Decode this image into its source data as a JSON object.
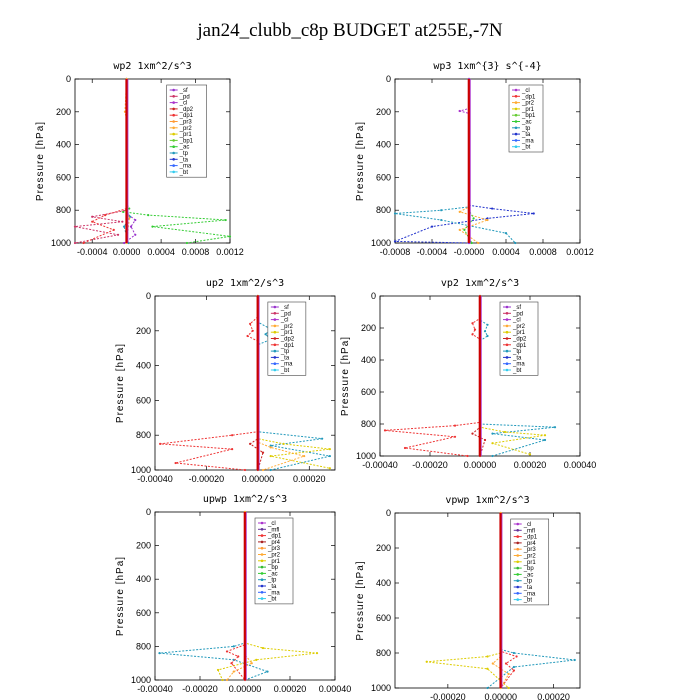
{
  "title": "jan24_clubb_c8p  BUDGET at255E,-7N",
  "colors": {
    "bg": "#ffffff",
    "axis": "#000000",
    "legend_border": "#444444",
    "bt_line": "#cc0000",
    "sf": "#9933cc",
    "pd": "#cc3366",
    "cl": "#aa33cc",
    "dp2": "#cc2222",
    "dp1": "#ee3333",
    "pr3": "#ff9933",
    "pr2": "#ffaa33",
    "pr1": "#ddcc00",
    "bp1": "#66cc33",
    "ac": "#33cc33",
    "tp": "#2299bb",
    "ta": "#2233cc",
    "ma": "#3366ff",
    "bt": "#33ccee",
    "mfl": "#663399",
    "pr4": "#aa2222",
    "bp": "#33bb33"
  },
  "chart_data": [
    {
      "type": "line",
      "title": "wp2   1xm^2/s^3",
      "ylabel": "Pressure [hPa]",
      "ylim": [
        0,
        1000
      ],
      "xlim": [
        -0.0006,
        0.0012
      ],
      "yticks": [
        0,
        200,
        400,
        600,
        800,
        1000
      ],
      "yticklabels": [
        "0",
        "200",
        "400",
        "600",
        "800",
        "1000"
      ],
      "xticks": [
        -0.0004,
        0,
        0.0004,
        0.0008,
        0.0012
      ],
      "xticklabels": [
        "-0.0004",
        "0.0000",
        "0.0004",
        "0.0008",
        "0.0012"
      ],
      "legend": [
        "_sf",
        "_pd",
        "_cl",
        "_dp2",
        "_dp1",
        "_pr3",
        "_pr2",
        "_pr1",
        "_bp1",
        "_ac",
        "_tp",
        "_ta",
        "_ma",
        "_bt"
      ],
      "legend_keys": [
        "sf",
        "pd",
        "cl",
        "dp2",
        "dp1",
        "pr3",
        "pr2",
        "pr1",
        "bp1",
        "ac",
        "tp",
        "ta",
        "ma",
        "bt"
      ],
      "series": [
        {
          "key": "ac",
          "x": [
            0,
            0,
            3e-05,
            -4e-05,
            0.00025,
            0.00115,
            0.0003,
            0.0012,
            0.0007
          ],
          "y": [
            0,
            760,
            790,
            810,
            830,
            860,
            900,
            960,
            1000
          ]
        },
        {
          "key": "pd",
          "x": [
            0,
            0,
            -0.0004,
            -5e-05,
            -0.0006,
            -0.0001,
            -0.0006
          ],
          "y": [
            0,
            800,
            840,
            870,
            900,
            950,
            1000
          ]
        },
        {
          "key": "dp1",
          "x": [
            0,
            0,
            -0.00025,
            -0.0004,
            -0.00015,
            -0.0005
          ],
          "y": [
            0,
            790,
            830,
            870,
            920,
            1000
          ]
        },
        {
          "key": "sf",
          "x": [
            0,
            0,
            0.0001,
            5e-05,
            0.0001,
            -3e-05
          ],
          "y": [
            0,
            820,
            860,
            900,
            950,
            1000
          ]
        },
        {
          "key": "tp",
          "x": [
            0,
            0,
            4e-05,
            -3e-05,
            2e-05
          ],
          "y": [
            0,
            800,
            840,
            900,
            1000
          ]
        },
        {
          "key": "pr2",
          "x": [
            0,
            -2e-05,
            0,
            0,
            3e-05,
            0
          ],
          "y": [
            0,
            200,
            250,
            800,
            850,
            1000
          ]
        }
      ]
    },
    {
      "type": "line",
      "title": "wp3   1xm^{3} s^{-4}",
      "ylabel": "Pressure [hPa]",
      "ylim": [
        0,
        1000
      ],
      "xlim": [
        -0.0008,
        0.0012
      ],
      "yticks": [
        0,
        200,
        400,
        600,
        800,
        1000
      ],
      "yticklabels": [
        "0",
        "200",
        "400",
        "600",
        "800",
        "1000"
      ],
      "xticks": [
        -0.0008,
        -0.0004,
        0,
        0.0004,
        0.0008,
        0.0012
      ],
      "xticklabels": [
        "-0.0008",
        "-0.0004",
        "-0.0000",
        "0.0004",
        "0.0008",
        "0.0012"
      ],
      "legend": [
        "_cl",
        "_dp1",
        "_pr2",
        "_pr1",
        "_bp1",
        "_ac",
        "_tp",
        "_ta",
        "_ma",
        "_bt"
      ],
      "legend_keys": [
        "cl",
        "dp1",
        "pr2",
        "pr1",
        "bp1",
        "ac",
        "tp",
        "ta",
        "ma",
        "bt"
      ],
      "series": [
        {
          "key": "ta",
          "x": [
            0,
            0,
            0.00025,
            0.0007,
            0.0002,
            -0.0004,
            -0.0008,
            0
          ],
          "y": [
            0,
            770,
            790,
            820,
            850,
            900,
            990,
            1000
          ]
        },
        {
          "key": "tp",
          "x": [
            0,
            0,
            -0.0003,
            -0.0008,
            -0.0003,
            0.0004,
            0.0005
          ],
          "y": [
            0,
            780,
            800,
            820,
            860,
            940,
            1000
          ]
        },
        {
          "key": "pr2",
          "x": [
            0,
            0,
            -0.0001,
            0.0002,
            -0.0001,
            0.0001
          ],
          "y": [
            0,
            780,
            810,
            860,
            920,
            1000
          ]
        },
        {
          "key": "ac",
          "x": [
            0,
            0,
            5e-05,
            -5e-05,
            3e-05
          ],
          "y": [
            0,
            800,
            850,
            920,
            1000
          ]
        },
        {
          "key": "cl",
          "x": [
            0,
            0,
            -0.0001,
            0,
            0
          ],
          "y": [
            0,
            180,
            195,
            210,
            1000
          ]
        }
      ]
    },
    {
      "type": "line",
      "title": "up2   1xm^2/s^3",
      "ylabel": "Pressure [hPa]",
      "ylim": [
        0,
        1000
      ],
      "xlim": [
        -0.0004,
        0.0003
      ],
      "yticks": [
        0,
        200,
        400,
        600,
        800,
        1000
      ],
      "yticklabels": [
        "0",
        "200",
        "400",
        "600",
        "800",
        "1000"
      ],
      "xticks": [
        -0.0004,
        -0.0002,
        0,
        0.0002
      ],
      "xticklabels": [
        "-0.00040",
        "-0.00020",
        "0.00000",
        "0.00020"
      ],
      "legend": [
        "_sf",
        "_pd",
        "_cl",
        "_pr2",
        "_pr1",
        "_dp2",
        "_dp1",
        "_tp",
        "_ta",
        "_ma",
        "_bt"
      ],
      "legend_keys": [
        "sf",
        "pd",
        "cl",
        "pr2",
        "pr1",
        "dp2",
        "dp1",
        "tp",
        "ta",
        "ma",
        "bt"
      ],
      "series": [
        {
          "key": "dp1",
          "x": [
            0,
            0,
            -3e-05,
            -2e-05,
            -4e-05,
            0,
            0,
            -0.0001,
            -0.00038,
            -0.0001,
            -0.00032,
            -5e-05
          ],
          "y": [
            0,
            120,
            160,
            200,
            230,
            260,
            780,
            800,
            850,
            880,
            960,
            1000
          ]
        },
        {
          "key": "tp",
          "x": [
            0,
            0,
            5e-05,
            3e-05,
            5e-05,
            0,
            0,
            0.00025,
            5e-05,
            0.00028,
            5e-05
          ],
          "y": [
            0,
            150,
            190,
            220,
            250,
            280,
            780,
            820,
            860,
            920,
            1000
          ]
        },
        {
          "key": "pr1",
          "x": [
            0,
            0,
            0.0001,
            0.00028,
            5e-05,
            0.00028
          ],
          "y": [
            0,
            820,
            850,
            880,
            920,
            990
          ]
        },
        {
          "key": "pr2",
          "x": [
            0,
            0,
            5e-05,
            0.00018,
            2e-05
          ],
          "y": [
            0,
            840,
            870,
            920,
            1000
          ]
        },
        {
          "key": "dp2",
          "x": [
            0,
            0,
            -3e-05,
            2e-05,
            0
          ],
          "y": [
            0,
            820,
            850,
            900,
            1000
          ]
        }
      ]
    },
    {
      "type": "line",
      "title": "vp2   1xm^2/s^3",
      "ylabel": "Pressure [hPa]",
      "ylim": [
        0,
        1000
      ],
      "xlim": [
        -0.0004,
        0.0004
      ],
      "yticks": [
        0,
        200,
        400,
        600,
        800,
        1000
      ],
      "yticklabels": [
        "0",
        "200",
        "400",
        "600",
        "800",
        "1000"
      ],
      "xticks": [
        -0.0004,
        -0.0002,
        0,
        0.0002,
        0.0004
      ],
      "xticklabels": [
        "-0.00040",
        "-0.00020",
        "0.00000",
        "0.00020",
        "0.00040"
      ],
      "legend": [
        "_sf",
        "_pd",
        "_cl",
        "_pr2",
        "_pr1",
        "_dp2",
        "_dp1",
        "_tp",
        "_ta",
        "_ma",
        "_bt"
      ],
      "legend_keys": [
        "sf",
        "pd",
        "cl",
        "pr2",
        "pr1",
        "dp2",
        "dp1",
        "tp",
        "ta",
        "ma",
        "bt"
      ],
      "series": [
        {
          "key": "dp1",
          "x": [
            0,
            0,
            -3e-05,
            -2e-05,
            -3e-05,
            0,
            0,
            -0.0001,
            -0.00038,
            -0.0001,
            -0.0003,
            -5e-05
          ],
          "y": [
            0,
            140,
            170,
            210,
            240,
            270,
            790,
            810,
            840,
            880,
            950,
            1000
          ]
        },
        {
          "key": "tp",
          "x": [
            0,
            0,
            3e-05,
            2e-05,
            3e-05,
            0,
            0,
            0.0003,
            5e-05,
            0.00026,
            5e-05
          ],
          "y": [
            0,
            150,
            180,
            220,
            250,
            280,
            800,
            820,
            860,
            900,
            1000
          ]
        },
        {
          "key": "pr1",
          "x": [
            0,
            0,
            0.0001,
            0.00026,
            5e-05,
            0.0002
          ],
          "y": [
            0,
            820,
            850,
            870,
            920,
            990
          ]
        },
        {
          "key": "dp2",
          "x": [
            0,
            0,
            -3e-05,
            2e-05,
            0
          ],
          "y": [
            0,
            820,
            860,
            900,
            1000
          ]
        }
      ]
    },
    {
      "type": "line",
      "title": "upwp   1xm^2/s^3",
      "ylabel": "Pressure [hPa]",
      "ylim": [
        0,
        1000
      ],
      "xlim": [
        -0.0004,
        0.0004
      ],
      "yticks": [
        0,
        200,
        400,
        600,
        800,
        1000
      ],
      "yticklabels": [
        "0",
        "200",
        "400",
        "600",
        "800",
        "1000"
      ],
      "xticks": [
        -0.0004,
        -0.0002,
        0,
        0.0002,
        0.0004
      ],
      "xticklabels": [
        "-0.00040",
        "-0.00020",
        "0.00000",
        "0.00020",
        "0.00040"
      ],
      "legend": [
        "_cl",
        "_mfl",
        "_dp1",
        "_pr4",
        "_pr3",
        "_pr2",
        "_pr1",
        "_bp",
        "_ac",
        "_tp",
        "_ta",
        "_ma",
        "_bt"
      ],
      "legend_keys": [
        "cl",
        "mfl",
        "dp1",
        "pr4",
        "pr3",
        "pr2",
        "pr1",
        "bp",
        "ac",
        "tp",
        "ta",
        "ma",
        "bt"
      ],
      "series": [
        {
          "key": "tp",
          "x": [
            0,
            0,
            -5e-05,
            -0.00038,
            -5e-05,
            0.0001,
            0
          ],
          "y": [
            0,
            780,
            800,
            840,
            880,
            950,
            1000
          ]
        },
        {
          "key": "pr1",
          "x": [
            0,
            0,
            8e-05,
            0.00032,
            5e-05,
            -0.00012,
            -0.0001
          ],
          "y": [
            0,
            780,
            810,
            840,
            880,
            940,
            1000
          ]
        },
        {
          "key": "dp1",
          "x": [
            0,
            0,
            -8e-05,
            -3e-05,
            -6e-05,
            0
          ],
          "y": [
            0,
            790,
            830,
            860,
            900,
            1000
          ]
        },
        {
          "key": "pr2",
          "x": [
            0,
            0,
            3e-05,
            -5e-05,
            -8e-05
          ],
          "y": [
            0,
            850,
            900,
            950,
            1000
          ]
        }
      ]
    },
    {
      "type": "line",
      "title": "vpwp   1xm^2/s^3",
      "ylabel": "Pressure [hPa]",
      "ylim": [
        0,
        1000
      ],
      "xlim": [
        -0.0004,
        0.0003
      ],
      "yticks": [
        0,
        200,
        400,
        600,
        800,
        1000
      ],
      "yticklabels": [
        "0",
        "200",
        "400",
        "600",
        "800",
        "1000"
      ],
      "xticks": [
        -0.0002,
        0,
        0.0002
      ],
      "xticklabels": [
        "-0.00020",
        "0.00000",
        "0.00020"
      ],
      "legend": [
        "_cl",
        "_mfl",
        "_dp1",
        "_pr4",
        "_pr3",
        "_pr2",
        "_pr1",
        "_bp",
        "_ac",
        "_tp",
        "_ta",
        "_ma",
        "_bt"
      ],
      "legend_keys": [
        "cl",
        "mfl",
        "dp1",
        "pr4",
        "pr3",
        "pr2",
        "pr1",
        "bp",
        "ac",
        "tp",
        "ta",
        "ma",
        "bt"
      ],
      "series": [
        {
          "key": "tp",
          "x": [
            0,
            0,
            5e-05,
            0.00028,
            5e-05,
            -5e-05
          ],
          "y": [
            0,
            780,
            800,
            840,
            880,
            1000
          ]
        },
        {
          "key": "pr1",
          "x": [
            0,
            0,
            -5e-05,
            -0.00028,
            -5e-05,
            3e-05
          ],
          "y": [
            0,
            800,
            820,
            850,
            890,
            1000
          ]
        },
        {
          "key": "dp1",
          "x": [
            0,
            0,
            6e-05,
            2e-05,
            5e-05,
            0
          ],
          "y": [
            0,
            790,
            820,
            860,
            900,
            1000
          ]
        },
        {
          "key": "pr2",
          "x": [
            0,
            0,
            -3e-05,
            3e-05,
            0
          ],
          "y": [
            0,
            820,
            860,
            920,
            1000
          ]
        }
      ]
    }
  ]
}
